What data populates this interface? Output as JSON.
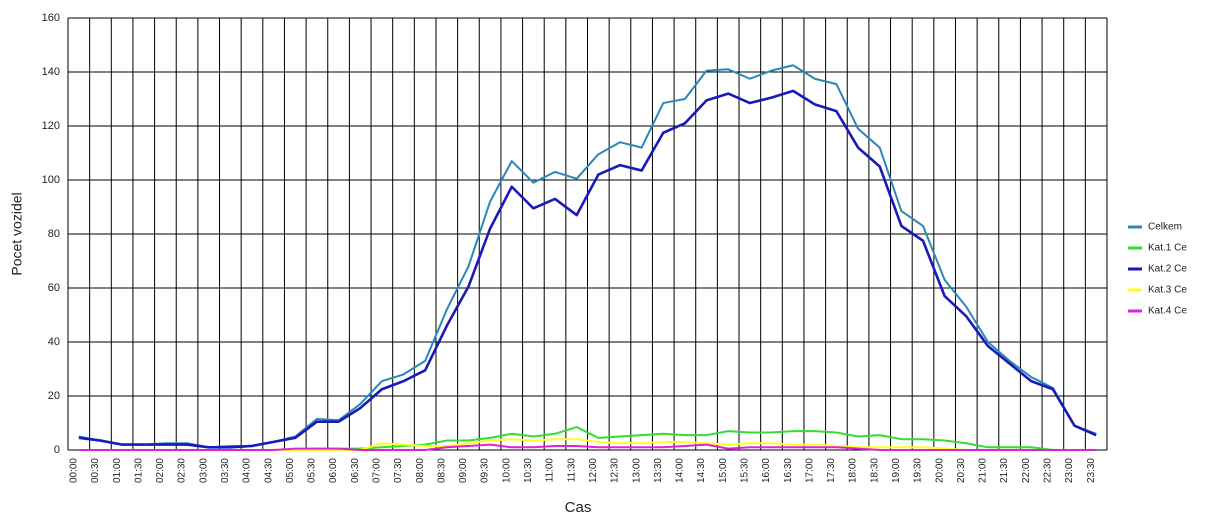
{
  "chart_data": {
    "type": "line",
    "xlabel": "Cas",
    "ylabel": "Pocet vozidel",
    "categories": [
      "00:00",
      "00:30",
      "01:00",
      "01:30",
      "02:00",
      "02:30",
      "03:00",
      "03:30",
      "04:00",
      "04:30",
      "05:00",
      "05:30",
      "06:00",
      "06:30",
      "07:00",
      "07:30",
      "08:00",
      "08:30",
      "09:00",
      "09:30",
      "10:00",
      "10:30",
      "11:00",
      "11:30",
      "12:00",
      "12:30",
      "13:00",
      "13:30",
      "14:00",
      "14:30",
      "15:00",
      "15:30",
      "16:00",
      "16:30",
      "17:00",
      "17:30",
      "18:00",
      "18:30",
      "19:00",
      "19:30",
      "20:00",
      "20:30",
      "21:00",
      "21:30",
      "22:00",
      "22:30",
      "23:00",
      "23:30"
    ],
    "ylim": [
      0,
      160
    ],
    "yticks": [
      0,
      20,
      40,
      60,
      80,
      100,
      120,
      140,
      160
    ],
    "grid": true,
    "legend": "right",
    "series": [
      {
        "name": "Celkem",
        "color": "#2a88b8",
        "values": [
          5,
          3.5,
          2,
          2,
          2.5,
          2.5,
          1,
          1.5,
          1.5,
          3,
          5,
          11.5,
          11,
          17,
          25.5,
          28,
          33,
          52,
          68,
          92,
          107,
          99,
          103,
          100.5,
          109.5,
          114,
          112,
          128.5,
          130,
          140.5,
          141,
          137.5,
          140.5,
          142.5,
          137.5,
          135.5,
          119,
          112,
          88.5,
          83,
          63,
          53,
          40,
          33,
          27,
          23,
          9,
          6
        ]
      },
      {
        "name": "Kat.1 Ce",
        "color": "#33dd33",
        "values": [
          0,
          0,
          0,
          0,
          0,
          0,
          0,
          0,
          0,
          0,
          0,
          0.5,
          0.5,
          0.5,
          1,
          1.5,
          2,
          3.5,
          3.5,
          4.5,
          6,
          5,
          6,
          8.5,
          4.5,
          5,
          5.5,
          6,
          5.5,
          5.5,
          7,
          6.5,
          6.5,
          7,
          7,
          6.5,
          5,
          5.5,
          4,
          4,
          3.5,
          2.5,
          1,
          1,
          1,
          0,
          0,
          0
        ]
      },
      {
        "name": "Kat.2 Ce",
        "color": "#1a1ab8",
        "values": [
          4.5,
          3.5,
          2,
          2,
          2,
          2,
          1,
          1,
          1.5,
          3,
          4.5,
          10.5,
          10.5,
          15.5,
          22.5,
          25.5,
          29.5,
          46,
          60.5,
          82,
          97.5,
          89.5,
          93,
          87,
          102,
          105.5,
          103.5,
          117.5,
          121,
          129.5,
          132,
          128.5,
          130.5,
          133,
          128,
          125.5,
          112,
          105,
          83,
          77.5,
          57,
          49.5,
          38.5,
          32,
          25.5,
          22.5,
          9,
          5.5
        ]
      },
      {
        "name": "Kat.3 Ce",
        "color": "#ffff22",
        "values": [
          0,
          0,
          0,
          0,
          0,
          0,
          0,
          0,
          0,
          0,
          0,
          0,
          0,
          0,
          2.5,
          2,
          1.5,
          1.5,
          2.5,
          3.5,
          4,
          3.5,
          4,
          4,
          3,
          2.5,
          2.5,
          3,
          3,
          2.5,
          2,
          2.5,
          2.5,
          2,
          2,
          1.5,
          1,
          1,
          1,
          1,
          0.5,
          0,
          0,
          0,
          0,
          0,
          0,
          0
        ]
      },
      {
        "name": "Kat.4 Ce",
        "color": "#dd22dd",
        "values": [
          0,
          0,
          0,
          0,
          0,
          0,
          0,
          0,
          0,
          0,
          0.5,
          0.5,
          0.5,
          0,
          0,
          0,
          0,
          1,
          1.5,
          2,
          1,
          1,
          1.5,
          1.5,
          1,
          1,
          1,
          1,
          1.5,
          2,
          0.5,
          1,
          1,
          1,
          1,
          1,
          0.5,
          0,
          0,
          0,
          0,
          0,
          0,
          0,
          0,
          0,
          0,
          0
        ]
      }
    ]
  }
}
